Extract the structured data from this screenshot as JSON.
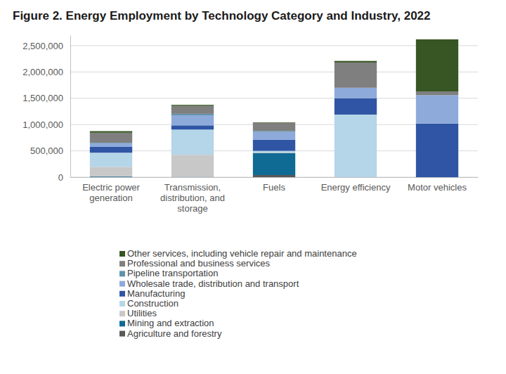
{
  "chart_data": {
    "type": "bar",
    "title": "Figure 2. Energy Employment by Technology Category and Industry, 2022",
    "categories": [
      "Electric power generation",
      "Transmission, distribution, and storage",
      "Fuels",
      "Energy efficiency",
      "Motor vehicles"
    ],
    "series": [
      {
        "name": "Agriculture and forestry",
        "color": "#595959",
        "values": [
          5000,
          0,
          40000,
          0,
          0
        ]
      },
      {
        "name": "Mining and extraction",
        "color": "#0f6a94",
        "values": [
          10000,
          5000,
          420000,
          0,
          0
        ]
      },
      {
        "name": "Utilities",
        "color": "#c8c8c8",
        "values": [
          180000,
          420000,
          10000,
          0,
          0
        ]
      },
      {
        "name": "Construction",
        "color": "#b5d5e8",
        "values": [
          270000,
          480000,
          30000,
          1190000,
          0
        ]
      },
      {
        "name": "Manufacturing",
        "color": "#2f55a4",
        "values": [
          110000,
          80000,
          210000,
          310000,
          1020000
        ]
      },
      {
        "name": "Wholesale trade, distribution and transport",
        "color": "#8eaadb",
        "values": [
          70000,
          190000,
          150000,
          200000,
          540000
        ]
      },
      {
        "name": "Pipeline transportation",
        "color": "#5f93aa",
        "values": [
          10000,
          30000,
          20000,
          0,
          0
        ]
      },
      {
        "name": "Professional and business services",
        "color": "#7f7f7f",
        "values": [
          190000,
          150000,
          150000,
          480000,
          70000
        ]
      },
      {
        "name": "Other services, including vehicle repair and maintenance",
        "color": "#375623",
        "values": [
          30000,
          20000,
          10000,
          30000,
          990000
        ]
      }
    ],
    "ylim": [
      0,
      2700000
    ],
    "yticks": [
      0,
      {
        "value": 500000,
        "label": "500,000"
      },
      {
        "value": 1000000,
        "label": "1,000,000"
      },
      {
        "value": 1500000,
        "label": "1,500,000"
      },
      {
        "value": 2000000,
        "label": "2,000,000"
      },
      {
        "value": 2500000,
        "label": "2,500,000"
      }
    ],
    "stacked": true,
    "grid": true,
    "legend": "bottom"
  }
}
